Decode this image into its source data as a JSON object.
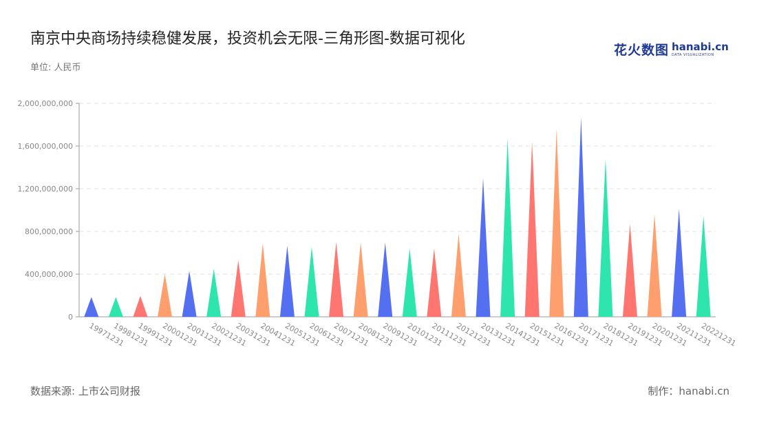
{
  "header": {
    "title": "南京中央商场持续稳健发展，投资机会无限-三角形图-数据可视化",
    "unit": "单位: 人民币"
  },
  "logo": {
    "cn": "花火数图",
    "en": "hanabi.cn",
    "en_sub": "DATA VISUALIZATION"
  },
  "footer": {
    "source": "数据来源: 上市公司财报",
    "credit": "制作：hanabi.cn"
  },
  "chart_data": {
    "type": "bar",
    "mark": "triangle",
    "categories": [
      "19971231",
      "19981231",
      "19991231",
      "20001231",
      "20011231",
      "20021231",
      "20031231",
      "20041231",
      "20051231",
      "20061231",
      "20071231",
      "20081231",
      "20091231",
      "20101231",
      "20111231",
      "20121231",
      "20131231",
      "20141231",
      "20151231",
      "20161231",
      "20171231",
      "20181231",
      "20191231",
      "20201231",
      "20211231",
      "20221231"
    ],
    "values": [
      185000000,
      185000000,
      195000000,
      400000000,
      430000000,
      450000000,
      530000000,
      690000000,
      665000000,
      655000000,
      700000000,
      695000000,
      695000000,
      640000000,
      640000000,
      780000000,
      1300000000,
      1670000000,
      1640000000,
      1760000000,
      1870000000,
      1480000000,
      870000000,
      960000000,
      1010000000,
      945000000
    ],
    "yticks": [
      "0",
      "400,000,000",
      "800,000,000",
      "1,200,000,000",
      "1,600,000,000",
      "2,000,000,000"
    ],
    "ylim": [
      0,
      2000000000
    ],
    "grid": true,
    "palette": [
      "#5470f0",
      "#2ee6ad",
      "#ff7570",
      "#ff9f6e"
    ]
  }
}
